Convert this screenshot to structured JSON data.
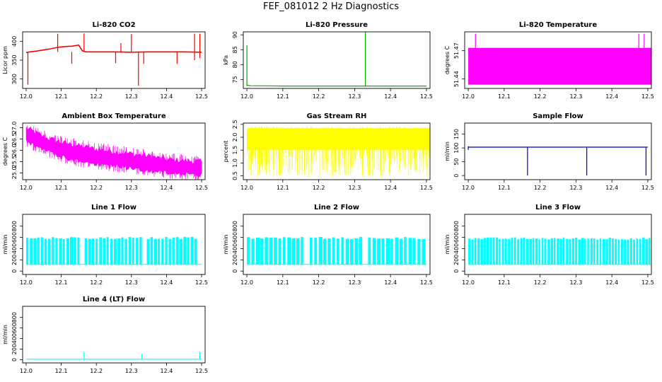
{
  "page": {
    "title": "FEF_081012  2 Hz Diagnostics"
  },
  "chart_data": [
    {
      "type": "line",
      "title": "Li-820 CO2",
      "ylabel": "Licor ppm",
      "xlim": [
        11.99,
        12.51
      ],
      "ylim": [
        275,
        425
      ],
      "xticks": [
        12.0,
        12.1,
        12.2,
        12.3,
        12.4,
        12.5
      ],
      "xtick_labels": [
        "12.0",
        "12.1",
        "12.2",
        "12.3",
        "12.4",
        "12.5"
      ],
      "yticks": [
        300,
        350,
        400
      ],
      "ytick_labels": [
        "300",
        "350",
        "400"
      ],
      "color": "#ff0000",
      "series": [
        {
          "x": [
            12.0,
            12.01,
            12.03,
            12.05,
            12.07,
            12.09,
            12.11,
            12.13,
            12.15,
            12.16,
            12.17,
            12.2,
            12.25,
            12.3,
            12.35,
            12.4,
            12.45,
            12.5
          ],
          "values": [
            370,
            372,
            374,
            377,
            380,
            384,
            386,
            387,
            390,
            375,
            372,
            372,
            372,
            371,
            372,
            372,
            372,
            371
          ]
        }
      ],
      "spikes": [
        {
          "x": 12.005,
          "lo": 285,
          "hi": 372
        },
        {
          "x": 12.09,
          "lo": 372,
          "hi": 420
        },
        {
          "x": 12.165,
          "lo": 372,
          "hi": 421
        },
        {
          "x": 12.13,
          "lo": 340,
          "hi": 372
        },
        {
          "x": 12.255,
          "lo": 342,
          "hi": 372
        },
        {
          "x": 12.27,
          "lo": 372,
          "hi": 395
        },
        {
          "x": 12.3,
          "lo": 372,
          "hi": 419
        },
        {
          "x": 12.32,
          "lo": 282,
          "hi": 372
        },
        {
          "x": 12.335,
          "lo": 340,
          "hi": 372
        },
        {
          "x": 12.43,
          "lo": 340,
          "hi": 372
        },
        {
          "x": 12.48,
          "lo": 350,
          "hi": 420
        },
        {
          "x": 12.495,
          "lo": 355,
          "hi": 420
        }
      ]
    },
    {
      "type": "line",
      "title": "Li-820 Pressure",
      "ylabel": "kPa",
      "xlim": [
        11.99,
        12.51
      ],
      "ylim": [
        72,
        91
      ],
      "xticks": [
        12.0,
        12.1,
        12.2,
        12.3,
        12.4,
        12.5
      ],
      "xtick_labels": [
        "12.0",
        "12.1",
        "12.2",
        "12.3",
        "12.4",
        "12.5"
      ],
      "yticks": [
        75,
        80,
        85,
        90
      ],
      "ytick_labels": [
        "75",
        "80",
        "85",
        "90"
      ],
      "color": "#00b000",
      "series": [
        {
          "x": [
            12.0,
            12.01,
            12.1,
            12.2,
            12.3,
            12.33,
            12.4,
            12.5
          ],
          "values": [
            73.1,
            72.9,
            72.8,
            72.8,
            72.8,
            72.8,
            72.8,
            72.8
          ]
        }
      ],
      "spikes": [
        {
          "x": 12.0,
          "lo": 72.8,
          "hi": 86.5
        },
        {
          "x": 12.33,
          "lo": 72.8,
          "hi": 91
        }
      ]
    },
    {
      "type": "area",
      "title": "Li-820 Temperature",
      "ylabel": "degrees C",
      "xlim": [
        11.99,
        12.51
      ],
      "ylim": [
        51.43,
        51.49
      ],
      "xticks": [
        12.0,
        12.1,
        12.2,
        12.3,
        12.4,
        12.5
      ],
      "xtick_labels": [
        "12.0",
        "12.1",
        "12.2",
        "12.3",
        "12.4",
        "12.5"
      ],
      "yticks": [
        51.44,
        51.47
      ],
      "ytick_labels": [
        "51.44",
        "51.47"
      ],
      "color": "#ff00ff",
      "band": {
        "x0": 12.0,
        "x1": 12.51,
        "lo": 51.434,
        "hi": 51.473
      },
      "spikes": [
        {
          "x": 12.02,
          "lo": 51.473,
          "hi": 51.488
        },
        {
          "x": 12.475,
          "lo": 51.473,
          "hi": 51.488
        },
        {
          "x": 12.49,
          "lo": 51.473,
          "hi": 51.488
        }
      ]
    },
    {
      "type": "area",
      "title": "Ambient Box Temperature",
      "ylabel": "degrees C",
      "xlim": [
        11.99,
        12.51
      ],
      "ylim": [
        24.7,
        27.2
      ],
      "xticks": [
        12.0,
        12.1,
        12.2,
        12.3,
        12.4,
        12.5
      ],
      "xtick_labels": [
        "12.0",
        "12.1",
        "12.2",
        "12.3",
        "12.4",
        "12.5"
      ],
      "yticks": [
        25.0,
        25.5,
        26.0,
        26.5,
        27.0
      ],
      "ytick_labels": [
        "25.0",
        "25.5",
        "26.0",
        "26.5",
        "27.0"
      ],
      "color": "#ff00ff",
      "upper": {
        "x": [
          12.0,
          12.05,
          12.1,
          12.15,
          12.2,
          12.25,
          12.3,
          12.35,
          12.4,
          12.45,
          12.5
        ],
        "values": [
          27.0,
          26.6,
          26.35,
          26.2,
          26.05,
          25.95,
          25.85,
          25.75,
          25.6,
          25.55,
          25.5
        ]
      },
      "lower": {
        "x": [
          12.0,
          12.05,
          12.1,
          12.15,
          12.2,
          12.25,
          12.3,
          12.35,
          12.4,
          12.45,
          12.5
        ],
        "values": [
          26.4,
          26.0,
          25.7,
          25.5,
          25.4,
          25.3,
          25.2,
          25.1,
          25.0,
          24.95,
          24.9
        ]
      }
    },
    {
      "type": "area",
      "title": "Gas Stream RH",
      "ylabel": "percent",
      "xlim": [
        11.99,
        12.51
      ],
      "ylim": [
        0.35,
        2.55
      ],
      "xticks": [
        12.0,
        12.1,
        12.2,
        12.3,
        12.4,
        12.5
      ],
      "xtick_labels": [
        "12.0",
        "12.1",
        "12.2",
        "12.3",
        "12.4",
        "12.5"
      ],
      "yticks": [
        0.5,
        1.0,
        1.5,
        2.0,
        2.5
      ],
      "ytick_labels": [
        "0.5",
        "1.0",
        "1.5",
        "2.0",
        "2.5"
      ],
      "color": "#ffff00",
      "band": {
        "x0": 12.0,
        "x1": 12.51,
        "lo": 1.5,
        "hi": 2.35
      },
      "dips_range": [
        0.45,
        1.4
      ]
    },
    {
      "type": "line",
      "title": "Sample Flow",
      "ylabel": "ml/min",
      "xlim": [
        11.99,
        12.51
      ],
      "ylim": [
        -15,
        190
      ],
      "xticks": [
        12.0,
        12.1,
        12.2,
        12.3,
        12.4,
        12.5
      ],
      "xtick_labels": [
        "12.0",
        "12.1",
        "12.2",
        "12.3",
        "12.4",
        "12.5"
      ],
      "yticks": [
        0,
        50,
        100,
        150
      ],
      "ytick_labels": [
        "0",
        "50",
        "100",
        "150"
      ],
      "color": "#0000cc",
      "series": [
        {
          "x": [
            12.0,
            12.1,
            12.2,
            12.3,
            12.4,
            12.5
          ],
          "values": [
            103,
            103,
            103,
            103,
            103,
            103
          ]
        }
      ],
      "spikes": [
        {
          "x": 12.0,
          "lo": 93,
          "hi": 106
        },
        {
          "x": 12.165,
          "lo": 0,
          "hi": 103
        },
        {
          "x": 12.33,
          "lo": 0,
          "hi": 103
        },
        {
          "x": 12.495,
          "lo": 0,
          "hi": 103
        }
      ]
    },
    {
      "type": "area",
      "title": "Line 1 Flow",
      "ylabel": "ml/min",
      "xlim": [
        11.99,
        12.51
      ],
      "ylim": [
        -60,
        1010
      ],
      "xticks": [
        12.0,
        12.1,
        12.2,
        12.3,
        12.4,
        12.5
      ],
      "xtick_labels": [
        "12.0",
        "12.1",
        "12.2",
        "12.3",
        "12.4",
        "12.5"
      ],
      "yticks": [
        0,
        200,
        400,
        600,
        800
      ],
      "ytick_labels": [
        "0",
        "200",
        "400",
        "600",
        "800"
      ],
      "color": "#00ffff",
      "pulses": {
        "x0": 12.0,
        "x1": 12.5,
        "lo": 120,
        "hi": 590,
        "count": 48,
        "gaps": [
          [
            12.15,
            12.165
          ],
          [
            12.33,
            12.34
          ],
          [
            12.48,
            12.495
          ]
        ]
      }
    },
    {
      "type": "area",
      "title": "Line 2 Flow",
      "ylabel": "ml/min",
      "xlim": [
        11.99,
        12.51
      ],
      "ylim": [
        -60,
        1010
      ],
      "xticks": [
        12.0,
        12.1,
        12.2,
        12.3,
        12.4,
        12.5
      ],
      "xtick_labels": [
        "12.0",
        "12.1",
        "12.2",
        "12.3",
        "12.4",
        "12.5"
      ],
      "yticks": [
        0,
        200,
        400,
        600,
        800
      ],
      "ytick_labels": [
        "0",
        "200",
        "400",
        "600",
        "800"
      ],
      "color": "#00ffff",
      "pulses": {
        "x0": 12.0,
        "x1": 12.5,
        "lo": 120,
        "hi": 590,
        "count": 40,
        "gaps": [
          [
            12.16,
            12.17
          ],
          [
            12.32,
            12.33
          ],
          [
            12.49,
            12.495
          ]
        ]
      }
    },
    {
      "type": "area",
      "title": "Line 3 Flow",
      "ylabel": "ml/min",
      "xlim": [
        11.99,
        12.51
      ],
      "ylim": [
        -60,
        1010
      ],
      "xticks": [
        12.0,
        12.1,
        12.2,
        12.3,
        12.4,
        12.5
      ],
      "xtick_labels": [
        "12.0",
        "12.1",
        "12.2",
        "12.3",
        "12.4",
        "12.5"
      ],
      "yticks": [
        0,
        200,
        400,
        600,
        800
      ],
      "ytick_labels": [
        "0",
        "200",
        "400",
        "600",
        "800"
      ],
      "color": "#00ffff",
      "pulses": {
        "x0": 12.0,
        "x1": 12.51,
        "lo": 120,
        "hi": 580,
        "count": 60,
        "gaps": []
      }
    },
    {
      "type": "line",
      "title": "Line 4 (LT) Flow",
      "ylabel": "ml/min",
      "xlim": [
        11.99,
        12.51
      ],
      "ylim": [
        -60,
        1010
      ],
      "xticks": [
        12.0,
        12.1,
        12.2,
        12.3,
        12.4,
        12.5
      ],
      "xtick_labels": [
        "12.0",
        "12.1",
        "12.2",
        "12.3",
        "12.4",
        "12.5"
      ],
      "yticks": [
        0,
        200,
        400,
        600,
        800
      ],
      "ytick_labels": [
        "0",
        "200",
        "400",
        "600",
        "800"
      ],
      "color": "#00ffff",
      "series": [
        {
          "x": [
            12.0,
            12.1,
            12.2,
            12.3,
            12.4,
            12.5
          ],
          "values": [
            10,
            10,
            10,
            10,
            10,
            10
          ]
        }
      ],
      "spikes": [
        {
          "x": 12.165,
          "lo": 10,
          "hi": 150
        },
        {
          "x": 12.33,
          "lo": 10,
          "hi": 110
        },
        {
          "x": 12.495,
          "lo": 10,
          "hi": 150
        }
      ]
    }
  ]
}
